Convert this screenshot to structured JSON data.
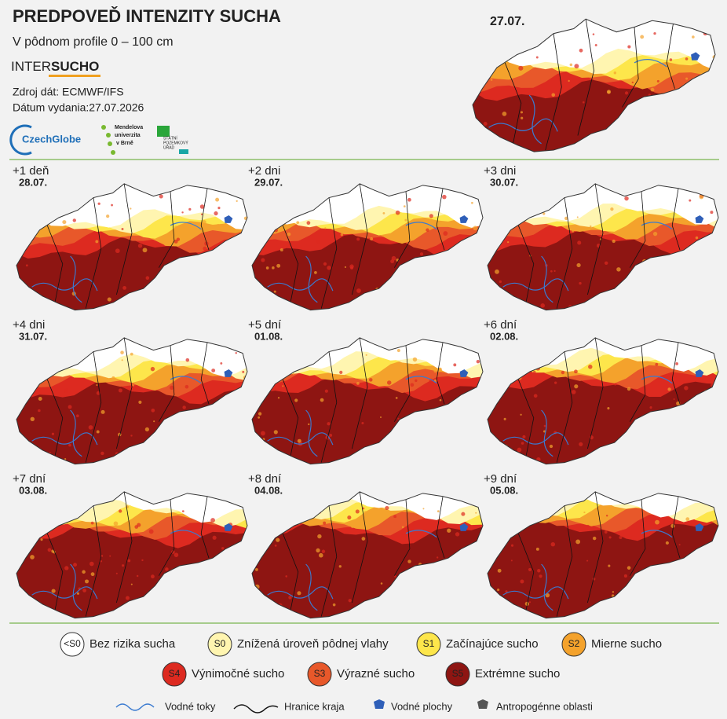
{
  "header": {
    "title": "PREDPOVEĎ INTENZITY SUCHA",
    "subtitle": "V pôdnom profile 0 – 100 cm",
    "brand": [
      "INTER",
      "SUCHO"
    ],
    "source": "Zdroj dát: ECMWF/IFS",
    "issued": "Dátum vydania:27.07.2026"
  },
  "partners": {
    "czechglobe": "CzechGlobe",
    "mendel": [
      "Mendelova",
      "univerzita",
      "v Brně"
    ],
    "spu": [
      "STÁTNÍ",
      "POZEMKOVÝ",
      "ÚŘAD"
    ]
  },
  "current_map": {
    "date": "27.07."
  },
  "forecasts": [
    {
      "offset": "+1 deň",
      "date": "28.07."
    },
    {
      "offset": "+2 dni",
      "date": "29.07."
    },
    {
      "offset": "+3 dni",
      "date": "30.07."
    },
    {
      "offset": "+4 dni",
      "date": "31.07."
    },
    {
      "offset": "+5 dní",
      "date": "01.08."
    },
    {
      "offset": "+6 dní",
      "date": "02.08."
    },
    {
      "offset": "+7 dní",
      "date": "03.08."
    },
    {
      "offset": "+8 dní",
      "date": "04.08."
    },
    {
      "offset": "+9 dní",
      "date": "05.08."
    }
  ],
  "legend": [
    {
      "code": "<S0",
      "label": "Bez rizika sucha",
      "color": "#ffffff"
    },
    {
      "code": "S0",
      "label": "Znížená úroveň pôdnej vlahy",
      "color": "#fff5b0"
    },
    {
      "code": "S1",
      "label": "Začínajúce sucho",
      "color": "#fde64b"
    },
    {
      "code": "S2",
      "label": "Mierne sucho",
      "color": "#f4a22c"
    },
    {
      "code": "S4",
      "label": "Výnimočné sucho",
      "color": "#dd2a20"
    },
    {
      "code": "S3",
      "label": "Výrazné sucho",
      "color": "#e8582a"
    },
    {
      "code": "S5",
      "label": "Extrémne sucho",
      "color": "#8e1512"
    }
  ],
  "map_legend": [
    "Vodné toky",
    "Hranice kraja",
    "Vodné plochy",
    "Antropogénne oblasti"
  ]
}
